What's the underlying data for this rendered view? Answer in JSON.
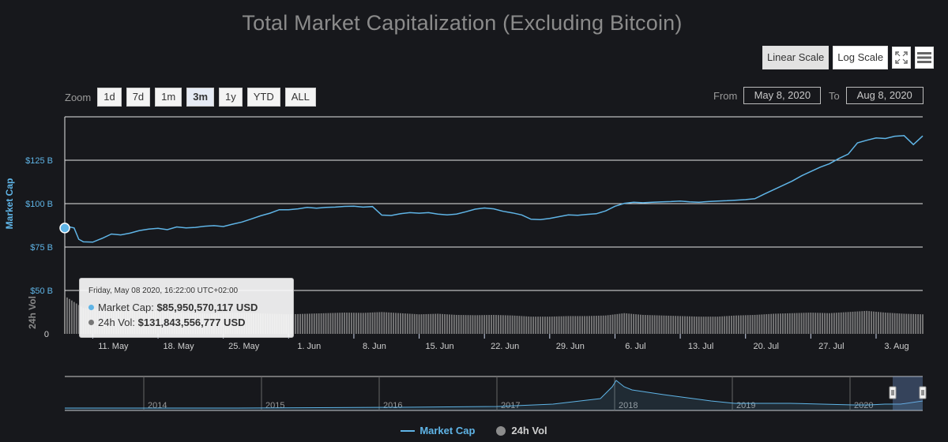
{
  "title": "Total Market Capitalization (Excluding Bitcoin)",
  "toolbar": {
    "linear_scale": "Linear Scale",
    "log_scale": "Log Scale",
    "fullscreen_icon": "fullscreen-icon",
    "menu_icon": "hamburger-menu-icon"
  },
  "zoom": {
    "label": "Zoom",
    "buttons": [
      "1d",
      "7d",
      "1m",
      "3m",
      "1y",
      "YTD",
      "ALL"
    ],
    "selected": "3m"
  },
  "range": {
    "from_label": "From",
    "from_value": "May 8, 2020",
    "to_label": "To",
    "to_value": "Aug 8, 2020"
  },
  "tooltip": {
    "header": "Friday, May 08 2020, 16:22:00 UTC+02:00",
    "cap_label": "Market Cap:",
    "cap_value": "$85,950,570,117 USD",
    "vol_label": "24h Vol:",
    "vol_value": "$131,843,556,777 USD"
  },
  "legend": {
    "cap": "Market Cap",
    "vol": "24h Vol"
  },
  "colors": {
    "market_cap": "#5fb4e6",
    "volume": "#8c8c8c",
    "background": "#17181c",
    "grid": "#e6e6e6"
  },
  "chart_data": {
    "type": "line",
    "title": "Total Market Capitalization (Excluding Bitcoin)",
    "y_axis": {
      "label": "Market Cap",
      "ticks": [
        "$50 B",
        "$75 B",
        "$100 B",
        "$125 B"
      ],
      "tick_values": [
        50,
        75,
        100,
        125
      ],
      "range": [
        50,
        140
      ],
      "unit": "B USD"
    },
    "volume_axis": {
      "label": "24h Vol",
      "ticks": [
        "0"
      ]
    },
    "x_axis": {
      "ticks": [
        "11. May",
        "18. May",
        "25. May",
        "1. Jun",
        "8. Jun",
        "15. Jun",
        "22. Jun",
        "29. Jun",
        "6. Jul",
        "13. Jul",
        "20. Jul",
        "27. Jul",
        "3. Aug"
      ],
      "tick_days": [
        3,
        10,
        17,
        24,
        31,
        38,
        45,
        52,
        59,
        66,
        73,
        80,
        87
      ],
      "day_range": [
        0,
        92
      ]
    },
    "series": [
      {
        "name": "Market Cap",
        "x_days": [
          0,
          0.5,
          1,
          1.5,
          2,
          3,
          4,
          5,
          6,
          7,
          8,
          9,
          10,
          11,
          12,
          13,
          14,
          15,
          16,
          17,
          18,
          19,
          20,
          21,
          22,
          23,
          24,
          25,
          26,
          27,
          28,
          29,
          30,
          31,
          32,
          33,
          34,
          35,
          36,
          37,
          38,
          39,
          40,
          41,
          42,
          43,
          44,
          45,
          46,
          47,
          48,
          49,
          50,
          51,
          52,
          53,
          54,
          55,
          56,
          57,
          58,
          59,
          60,
          61,
          62,
          63,
          64,
          65,
          66,
          67,
          68,
          69,
          70,
          71,
          72,
          73,
          74,
          75,
          76,
          77,
          78,
          79,
          80,
          81,
          82,
          83,
          84,
          85,
          86,
          87,
          88,
          89,
          90,
          91,
          92
        ],
        "values": [
          85.95,
          86.6,
          86.0,
          79.5,
          78.0,
          77.8,
          80.0,
          82.5,
          82.0,
          83.0,
          84.5,
          85.3,
          85.8,
          85.0,
          86.6,
          86.0,
          86.3,
          87.0,
          87.3,
          86.8,
          88.2,
          89.4,
          91.2,
          93.0,
          94.5,
          96.5,
          96.5,
          97.0,
          97.8,
          97.4,
          97.8,
          98.0,
          98.4,
          98.5,
          98.0,
          98.3,
          93.4,
          93.2,
          94.2,
          94.8,
          94.5,
          94.8,
          94.0,
          93.5,
          94.0,
          95.3,
          96.8,
          97.5,
          97.0,
          95.6,
          94.7,
          93.5,
          91.0,
          90.8,
          91.5,
          92.5,
          93.5,
          93.3,
          93.8,
          94.2,
          95.8,
          98.5,
          100.2,
          100.8,
          100.5,
          100.8,
          101.0,
          101.2,
          101.5,
          101.0,
          100.8,
          101.2,
          101.5,
          101.7,
          102.0,
          102.3,
          102.8,
          105.5,
          108.0,
          110.5,
          113.0,
          116.0,
          118.5,
          121.0,
          123.0,
          126.0,
          128.5,
          135.0,
          136.5,
          137.8,
          137.5,
          138.8,
          139.2,
          134.0,
          139.0
        ],
        "color": "#5fb4e6"
      },
      {
        "name": "24h Vol",
        "x_days": [
          0,
          2,
          4,
          6,
          8,
          10,
          12,
          14,
          16,
          18,
          20,
          22,
          24,
          26,
          28,
          30,
          32,
          34,
          36,
          38,
          40,
          42,
          44,
          46,
          48,
          50,
          52,
          54,
          56,
          58,
          60,
          62,
          64,
          66,
          68,
          70,
          72,
          74,
          76,
          78,
          80,
          82,
          84,
          86,
          88,
          90,
          92
        ],
        "values": [
          131.8,
          90,
          85,
          82,
          80,
          80,
          74,
          72,
          70,
          74,
          72,
          70,
          68,
          70,
          72,
          74,
          73,
          76,
          72,
          68,
          70,
          66,
          65,
          66,
          64,
          60,
          60,
          62,
          62,
          64,
          72,
          66,
          64,
          62,
          60,
          60,
          64,
          66,
          70,
          72,
          74,
          72,
          76,
          80,
          74,
          70,
          68
        ],
        "color": "#8c8c8c"
      }
    ],
    "navigator": {
      "ticks": [
        "2014",
        "2015",
        "2016",
        "2017",
        "2018",
        "2019",
        "2020"
      ]
    },
    "legend_position": "bottom-center",
    "grid": true
  }
}
